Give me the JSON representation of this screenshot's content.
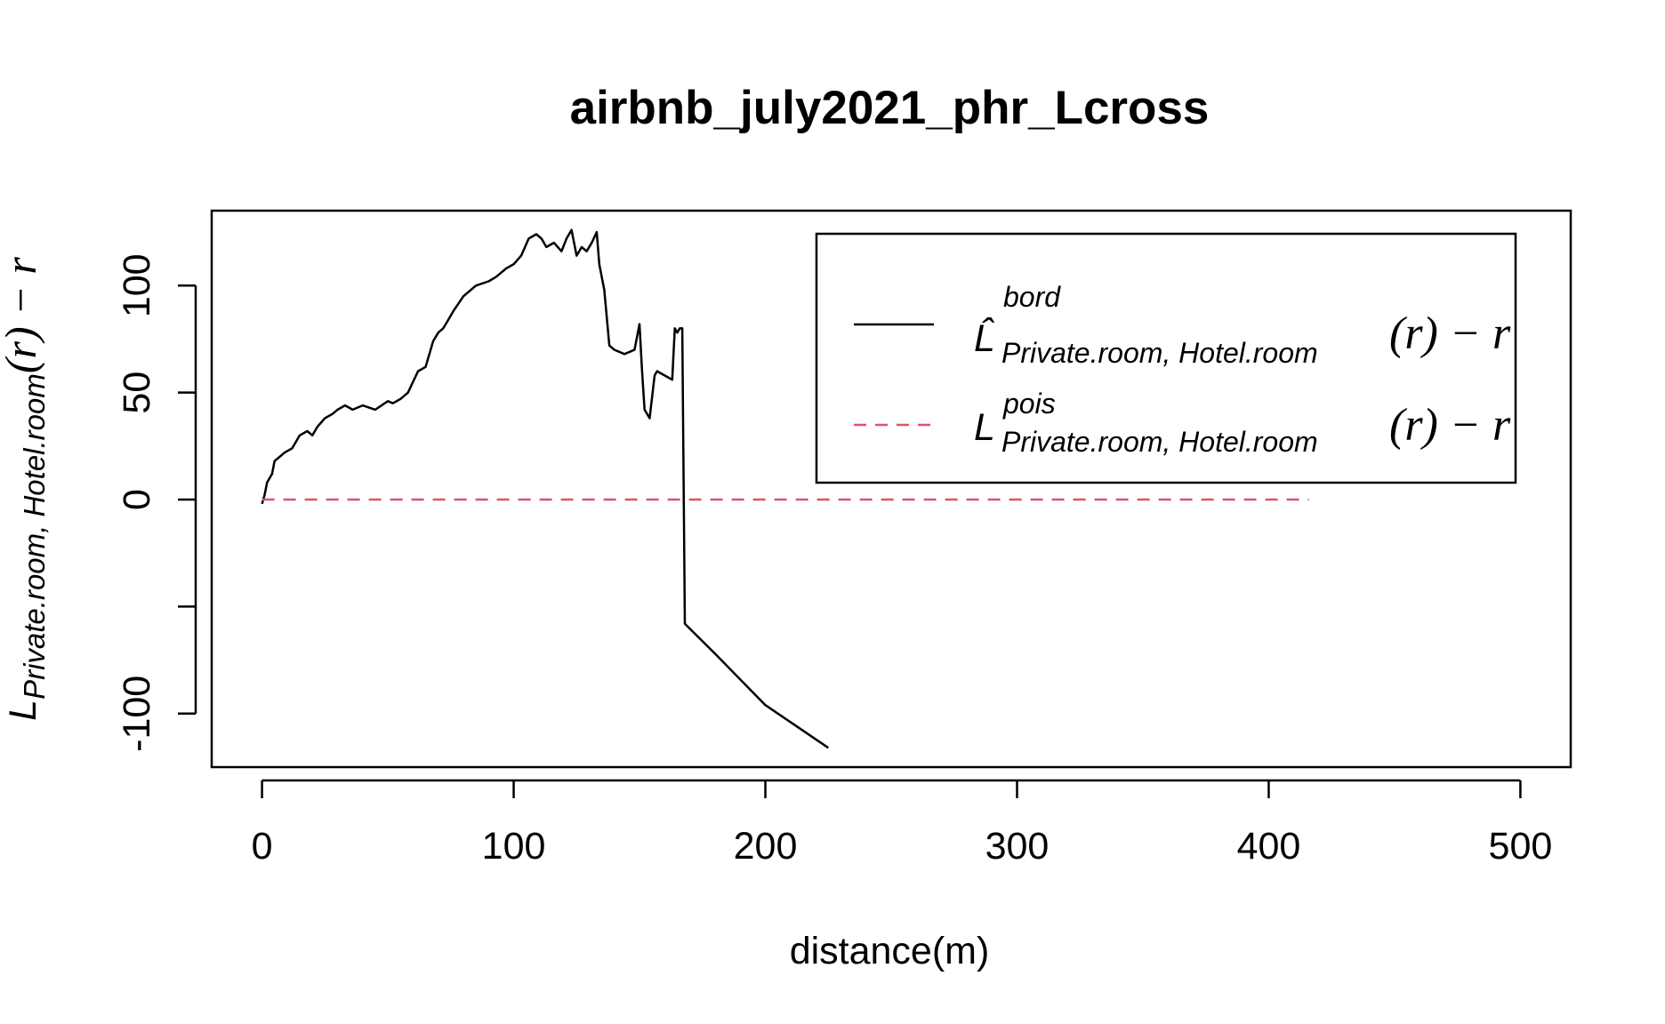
{
  "chart_data": {
    "type": "line",
    "title": "airbnb_july2021_phr_Lcross",
    "xlabel": "distance(m)",
    "ylabel": {
      "main": "L",
      "subscript": "Private.room, Hotel.room",
      "suffix": "(r) − r"
    },
    "xlim": [
      -20,
      520
    ],
    "ylim": [
      -125,
      135
    ],
    "x_ticks": [
      0,
      100,
      200,
      300,
      400,
      500
    ],
    "x_tick_labels": [
      "0",
      "100",
      "200",
      "300",
      "400",
      "500"
    ],
    "y_ticks": [
      -100,
      -50,
      0,
      50,
      100
    ],
    "y_tick_labels": [
      "-100",
      "",
      "0",
      "50",
      "100"
    ],
    "grid": false,
    "legend_position": "top-right",
    "series": [
      {
        "name": "L̂ bord Private.room, Hotel.room (r) − r",
        "legend_main": "L̂",
        "legend_sup": "bord",
        "legend_sub": "Private.room, Hotel.room",
        "legend_suffix": "(r) − r",
        "color": "#000000",
        "dash": "solid",
        "x": [
          0,
          1,
          2,
          4,
          5,
          7,
          9,
          12,
          15,
          18,
          20,
          22,
          25,
          28,
          30,
          33,
          36,
          40,
          45,
          50,
          52,
          55,
          58,
          62,
          65,
          68,
          70,
          72,
          73,
          76,
          80,
          85,
          90,
          93,
          97,
          100,
          103,
          106,
          109,
          111,
          113,
          116,
          119,
          121,
          123,
          125,
          127,
          129,
          131,
          133,
          134,
          136,
          138,
          140,
          144,
          148,
          150,
          151,
          152,
          154,
          156,
          157,
          160,
          163,
          164,
          165,
          166,
          167,
          168,
          180,
          200,
          225
        ],
        "y": [
          -2,
          2,
          8,
          12,
          18,
          20,
          22,
          24,
          30,
          32,
          30,
          34,
          38,
          40,
          42,
          44,
          42,
          44,
          42,
          46,
          45,
          47,
          50,
          60,
          62,
          74,
          78,
          80,
          82,
          88,
          95,
          100,
          102,
          104,
          108,
          110,
          114,
          122,
          124,
          122,
          118,
          120,
          116,
          122,
          126,
          114,
          118,
          116,
          120,
          125,
          110,
          98,
          72,
          70,
          68,
          70,
          82,
          60,
          42,
          38,
          58,
          60,
          58,
          56,
          80,
          78,
          80,
          80,
          -58,
          -72,
          -96,
          -116
        ]
      },
      {
        "name": "L pois Private.room, Hotel.room (r) − r",
        "legend_main": "L",
        "legend_sup": "pois",
        "legend_sub": "Private.room, Hotel.room",
        "legend_suffix": "(r) − r",
        "color": "#DF536B",
        "dash": "dashed",
        "x": [
          0,
          416
        ],
        "y": [
          0,
          0
        ]
      }
    ]
  }
}
